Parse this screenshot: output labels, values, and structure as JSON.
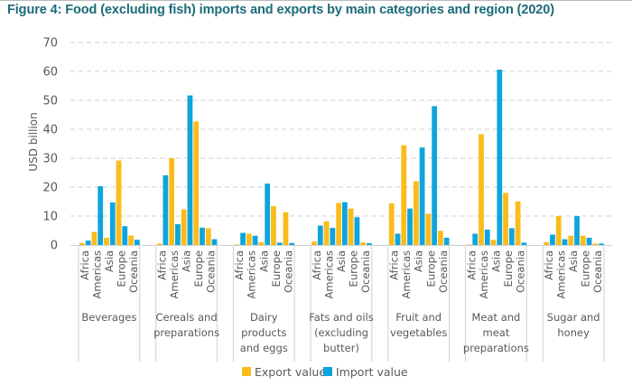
{
  "chart_data": {
    "type": "bar",
    "title": "Figure 4: Food (excluding fish) imports and exports by main categories and region (2020)",
    "ylabel": "USD billion",
    "xlabel": "",
    "ylim": [
      0,
      70
    ],
    "yticks": [
      0,
      10,
      20,
      30,
      40,
      50,
      60,
      70
    ],
    "grid": true,
    "legend_position": "bottom",
    "regions": [
      "Africa",
      "Americas",
      "Asia",
      "Europe",
      "Oceania"
    ],
    "categories": [
      {
        "name": "Beverages",
        "label_lines": [
          "Beverages"
        ]
      },
      {
        "name": "Cereals and preparations",
        "label_lines": [
          "Cereals and",
          "preparations"
        ]
      },
      {
        "name": "Dairy products and eggs",
        "label_lines": [
          "Dairy",
          "products",
          "and eggs"
        ]
      },
      {
        "name": "Fats and oils (excluding butter)",
        "label_lines": [
          "Fats and oils",
          "(excluding",
          "butter)"
        ]
      },
      {
        "name": "Fruit and vegetables",
        "label_lines": [
          "Fruit and",
          "vegetables"
        ]
      },
      {
        "name": "Meat and meat preparations",
        "label_lines": [
          "Meat and",
          "meat",
          "preparations"
        ]
      },
      {
        "name": "Sugar and honey",
        "label_lines": [
          "Sugar and",
          "honey"
        ]
      }
    ],
    "series": [
      {
        "name": "Export value",
        "color": "#fbbc1b",
        "values": [
          [
            0.7,
            4.5,
            2.5,
            29.2,
            3.3
          ],
          [
            0.5,
            30.0,
            12.3,
            42.7,
            5.8
          ],
          [
            0.2,
            3.9,
            1.0,
            13.4,
            11.3
          ],
          [
            1.2,
            8.2,
            14.5,
            12.6,
            0.9
          ],
          [
            14.4,
            34.5,
            22.0,
            10.8,
            4.9
          ],
          [
            0.2,
            38.3,
            1.8,
            18.0,
            15.1
          ],
          [
            1.0,
            10.0,
            3.2,
            3.2,
            0.5
          ]
        ]
      },
      {
        "name": "Import value",
        "color": "#0ea5dd",
        "values": [
          [
            1.5,
            20.3,
            14.7,
            6.5,
            1.8
          ],
          [
            24.1,
            7.2,
            51.7,
            6.0,
            2.0
          ],
          [
            4.2,
            3.2,
            21.2,
            0.8,
            0.7
          ],
          [
            6.7,
            5.9,
            14.8,
            9.6,
            0.6
          ],
          [
            3.9,
            12.6,
            33.7,
            48.0,
            2.5
          ],
          [
            3.9,
            5.3,
            60.6,
            5.8,
            0.8
          ],
          [
            3.6,
            2.0,
            10.0,
            2.5,
            0.5
          ]
        ]
      }
    ]
  }
}
